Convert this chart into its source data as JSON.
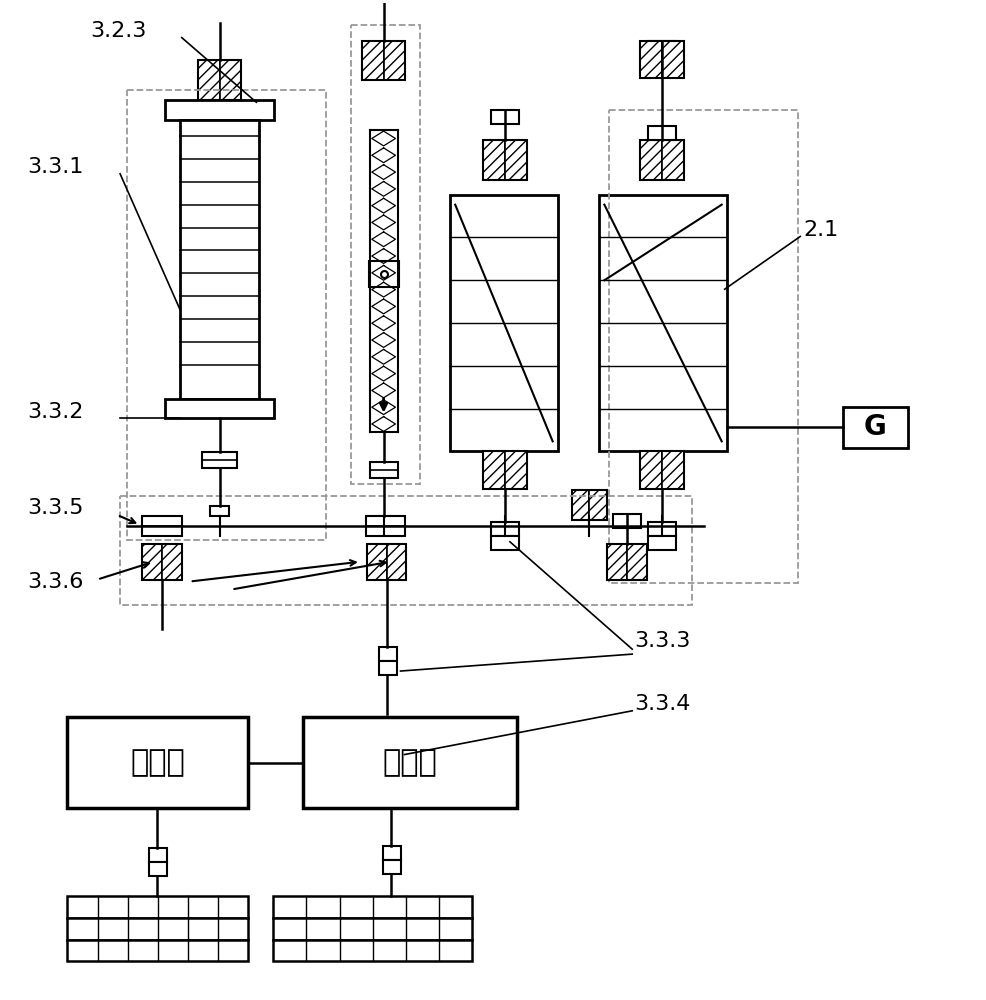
{
  "bg_color": "#ffffff",
  "lc": "#000000",
  "label_323": "3.2.3",
  "label_331": "3.3.1",
  "label_332": "3.3.2",
  "label_335": "3.3.5",
  "label_336": "3.3.6",
  "label_333": "3.3.3",
  "label_334": "3.3.4",
  "label_21": "2.1",
  "label_G": "G",
  "label_qiyouji": "汽油机",
  "label_biasuxiang": "变速筱"
}
